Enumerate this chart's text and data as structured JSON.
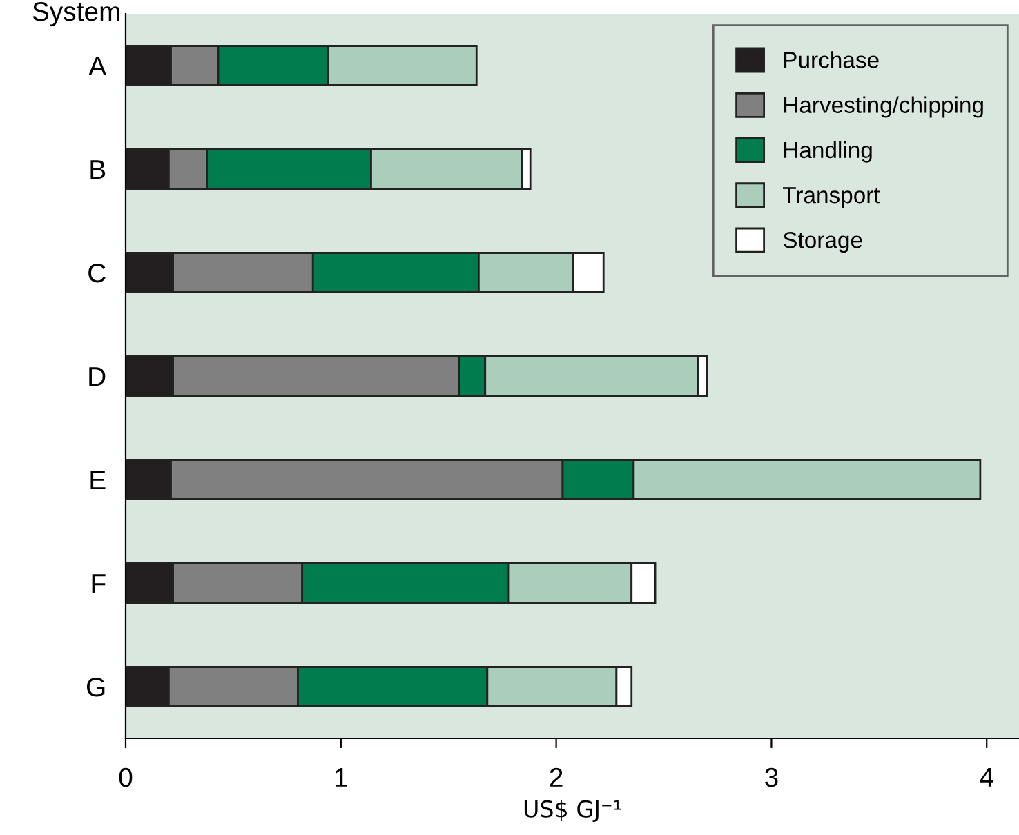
{
  "chart_data": {
    "type": "bar",
    "orientation": "horizontal",
    "stacked": true,
    "ylabel": "System",
    "xlabel": "US$ GJ⁻¹",
    "categories": [
      "A",
      "B",
      "C",
      "D",
      "E",
      "F",
      "G"
    ],
    "series": [
      {
        "name": "Purchase",
        "color": "#231f20",
        "values": [
          0.21,
          0.2,
          0.22,
          0.22,
          0.21,
          0.22,
          0.2
        ]
      },
      {
        "name": "Harvesting/chipping",
        "color": "#808080",
        "values": [
          0.22,
          0.18,
          0.65,
          1.33,
          1.82,
          0.6,
          0.6
        ]
      },
      {
        "name": "Handling",
        "color": "#007c4e",
        "values": [
          0.51,
          0.76,
          0.77,
          0.12,
          0.33,
          0.96,
          0.88
        ]
      },
      {
        "name": "Transport",
        "color": "#abcdbc",
        "values": [
          0.69,
          0.7,
          0.44,
          0.99,
          1.61,
          0.57,
          0.6
        ]
      },
      {
        "name": "Storage",
        "color": "#ffffff",
        "values": [
          0,
          0.04,
          0.14,
          0.04,
          0,
          0.11,
          0.07
        ]
      }
    ],
    "xlim": [
      0,
      4.15
    ],
    "xticks": [
      0,
      1,
      2,
      3,
      4
    ],
    "grid": false,
    "legend": "top right"
  }
}
